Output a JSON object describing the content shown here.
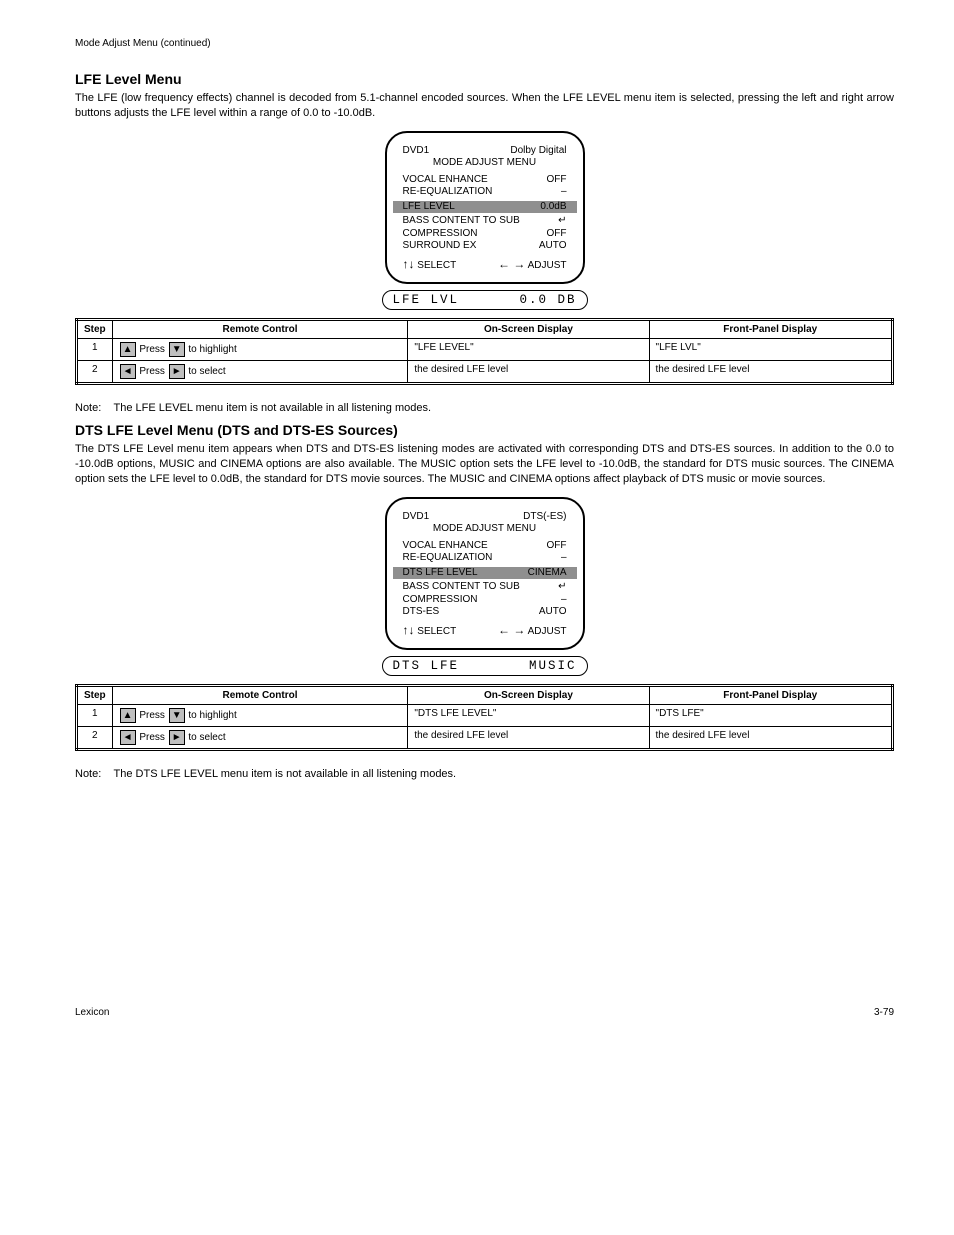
{
  "page_header": "Mode Adjust Menu (continued)",
  "section1": {
    "heading": "LFE Level Menu",
    "paragraph": "The LFE (low frequency effects) channel is decoded from 5.1-channel encoded sources. When the LFE LEVEL menu item is selected, pressing the left and right arrow buttons adjusts the LFE level within a range of 0.0 to -10.0dB.",
    "screen": {
      "header_left": "DVD1",
      "header_right": "Dolby Digital",
      "title": "MODE ADJUST MENU",
      "rows": [
        {
          "l": "VOCAL ENHANCE",
          "r": "OFF"
        },
        {
          "l": "RE-EQUALIZATION",
          "r": "–"
        },
        {
          "l": "LFE LEVEL",
          "r": "0.0dB",
          "hl": true
        },
        {
          "l": "BASS CONTENT TO SUB",
          "r": "↵"
        },
        {
          "l": "COMPRESSION",
          "r": "OFF"
        },
        {
          "l": "SURROUND EX",
          "r": "AUTO"
        }
      ],
      "hint_left": "SELECT",
      "hint_right": "ADJUST"
    },
    "lcd_left": "LFE LVL",
    "lcd_right": "0.0 DB",
    "table": {
      "headers": [
        "Step",
        "Remote Control",
        "On-Screen Display",
        "Front-Panel Display"
      ],
      "rows": [
        {
          "step": "1",
          "control_parts": [
            {
              "btn": "▲"
            },
            " Press ",
            {
              "btn": "▼"
            },
            " to highlight"
          ],
          "osd": "\"LFE LEVEL\"",
          "fpd": "\"LFE LVL\""
        },
        {
          "step": "2",
          "control_parts": [
            {
              "btn": "◄"
            },
            " Press ",
            {
              "btn": "►"
            },
            " to select"
          ],
          "osd": "the desired LFE level",
          "fpd": "the desired LFE level"
        }
      ]
    },
    "note": "Note:    The LFE LEVEL menu item is not available in all listening modes."
  },
  "section2": {
    "heading": "DTS LFE Level Menu (DTS and DTS-ES Sources)",
    "paragraph": "The DTS LFE Level menu item appears when DTS and DTS-ES listening modes are activated with corresponding DTS and DTS-ES sources. In addition to the 0.0 to -10.0dB options, MUSIC and CINEMA options are also available. The MUSIC option sets the LFE level to -10.0dB, the standard for DTS music sources. The CINEMA option sets the LFE level to 0.0dB, the standard for DTS movie sources. The MUSIC and CINEMA options affect playback of DTS music or movie sources.",
    "screen": {
      "header_left": "DVD1",
      "header_right": "DTS(-ES)",
      "title": "MODE ADJUST MENU",
      "rows": [
        {
          "l": "VOCAL ENHANCE",
          "r": "OFF"
        },
        {
          "l": "RE-EQUALIZATION",
          "r": "–"
        },
        {
          "l": "DTS LFE LEVEL",
          "r": "CINEMA",
          "hl": true
        },
        {
          "l": "BASS CONTENT TO SUB",
          "r": "↵"
        },
        {
          "l": "COMPRESSION",
          "r": "–"
        },
        {
          "l": "DTS-ES",
          "r": "AUTO"
        }
      ],
      "hint_left": "SELECT",
      "hint_right": "ADJUST"
    },
    "lcd_left": "DTS LFE",
    "lcd_right": "MUSIC",
    "table": {
      "headers": [
        "Step",
        "Remote Control",
        "On-Screen Display",
        "Front-Panel Display"
      ],
      "rows": [
        {
          "step": "1",
          "control_parts": [
            {
              "btn": "▲"
            },
            " Press ",
            {
              "btn": "▼"
            },
            " to highlight"
          ],
          "osd": "\"DTS LFE LEVEL\"",
          "fpd": "\"DTS LFE\""
        },
        {
          "step": "2",
          "control_parts": [
            {
              "btn": "◄"
            },
            " Press ",
            {
              "btn": "►"
            },
            " to select"
          ],
          "osd": "the desired LFE level",
          "fpd": "the desired LFE level"
        }
      ]
    },
    "note": "Note:    The DTS LFE LEVEL menu item is not available in all listening modes."
  },
  "footer_left": "Lexicon",
  "footer_right": "3-79"
}
